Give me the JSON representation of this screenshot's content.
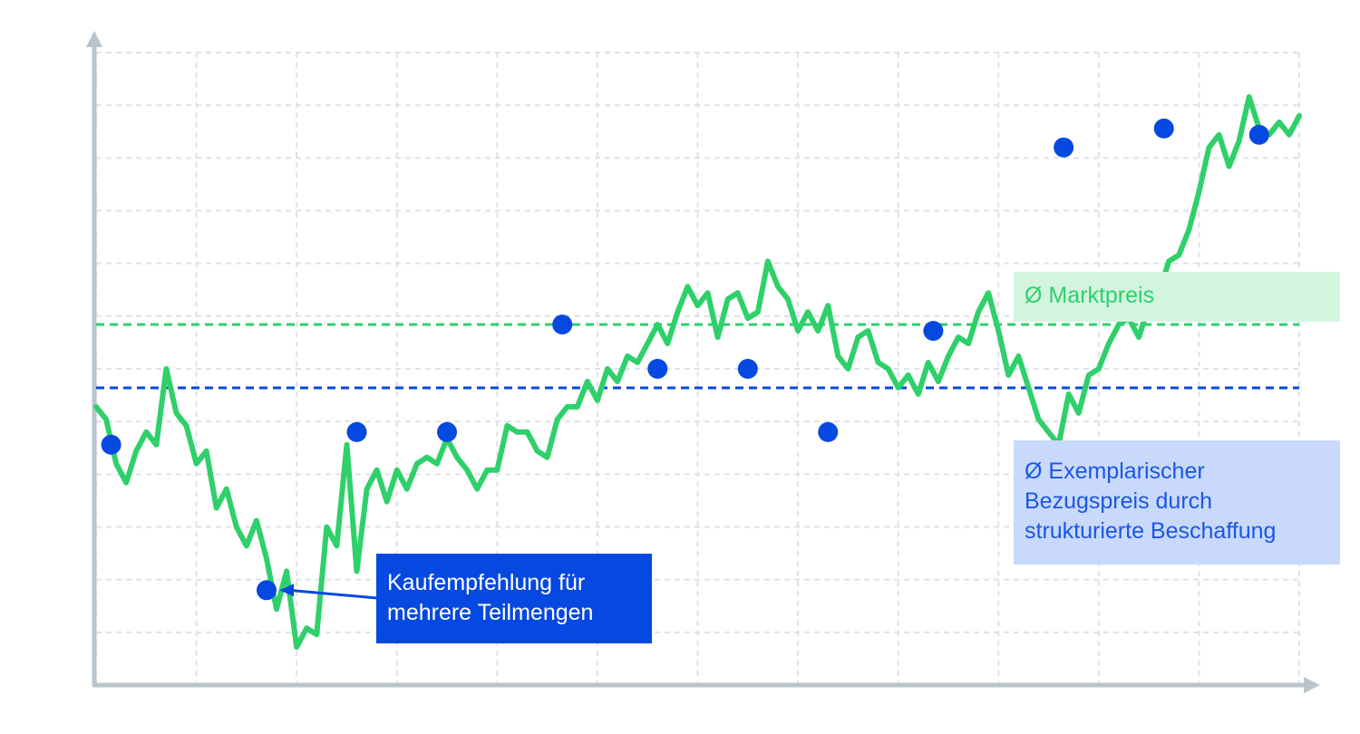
{
  "chart_data": {
    "type": "line",
    "title": "",
    "xlabel": "",
    "ylabel": "",
    "xlim": [
      0,
      240
    ],
    "ylim": [
      0,
      100
    ],
    "grid": true,
    "colors": {
      "market_line": "#2fd06a",
      "purchase_points": "#0649e0",
      "avg_market": "#2fd06a",
      "avg_supply": "#0649e0",
      "axis": "#b9c4cc",
      "grid": "#dde3e6"
    },
    "series": [
      {
        "values": [
          [
            0,
            44
          ],
          [
            2,
            42
          ],
          [
            4,
            35
          ],
          [
            6,
            32
          ],
          [
            8,
            37
          ],
          [
            10,
            40
          ],
          [
            12,
            38
          ],
          [
            14,
            50
          ],
          [
            16,
            43
          ],
          [
            18,
            41
          ],
          [
            20,
            35
          ],
          [
            22,
            37
          ],
          [
            24,
            28
          ],
          [
            26,
            31
          ],
          [
            28,
            25
          ],
          [
            30,
            22
          ],
          [
            32,
            26
          ],
          [
            34,
            20
          ],
          [
            36,
            12
          ],
          [
            38,
            18
          ],
          [
            40,
            6
          ],
          [
            42,
            9
          ],
          [
            44,
            8
          ],
          [
            46,
            25
          ],
          [
            48,
            22
          ],
          [
            50,
            38
          ],
          [
            52,
            18
          ],
          [
            54,
            31
          ],
          [
            56,
            34
          ],
          [
            58,
            29
          ],
          [
            60,
            34
          ],
          [
            62,
            31
          ],
          [
            64,
            35
          ],
          [
            66,
            36
          ],
          [
            68,
            35
          ],
          [
            70,
            39
          ],
          [
            72,
            36
          ],
          [
            74,
            34
          ],
          [
            76,
            31
          ],
          [
            78,
            34
          ],
          [
            80,
            34
          ],
          [
            82,
            41
          ],
          [
            84,
            40
          ],
          [
            86,
            40
          ],
          [
            88,
            37
          ],
          [
            90,
            36
          ],
          [
            92,
            42
          ],
          [
            94,
            44
          ],
          [
            96,
            44
          ],
          [
            98,
            48
          ],
          [
            100,
            45
          ],
          [
            102,
            50
          ],
          [
            104,
            48
          ],
          [
            106,
            52
          ],
          [
            108,
            51
          ],
          [
            110,
            54
          ],
          [
            112,
            57
          ],
          [
            114,
            54
          ],
          [
            116,
            59
          ],
          [
            118,
            63
          ],
          [
            120,
            60
          ],
          [
            122,
            62
          ],
          [
            124,
            55
          ],
          [
            126,
            61
          ],
          [
            128,
            62
          ],
          [
            130,
            58
          ],
          [
            132,
            59
          ],
          [
            134,
            67
          ],
          [
            136,
            63
          ],
          [
            138,
            61
          ],
          [
            140,
            56
          ],
          [
            142,
            59
          ],
          [
            144,
            56
          ],
          [
            146,
            60
          ],
          [
            148,
            52
          ],
          [
            150,
            50
          ],
          [
            152,
            55
          ],
          [
            154,
            56
          ],
          [
            156,
            51
          ],
          [
            158,
            50
          ],
          [
            160,
            47
          ],
          [
            162,
            49
          ],
          [
            164,
            46
          ],
          [
            166,
            51
          ],
          [
            168,
            48
          ],
          [
            170,
            52
          ],
          [
            172,
            55
          ],
          [
            174,
            54
          ],
          [
            176,
            59
          ],
          [
            178,
            62
          ],
          [
            180,
            56
          ],
          [
            182,
            49
          ],
          [
            184,
            52
          ],
          [
            186,
            47
          ],
          [
            188,
            42
          ],
          [
            190,
            40
          ],
          [
            192,
            38
          ],
          [
            194,
            46
          ],
          [
            196,
            43
          ],
          [
            198,
            49
          ],
          [
            200,
            50
          ],
          [
            202,
            54
          ],
          [
            204,
            57
          ],
          [
            206,
            58
          ],
          [
            208,
            55
          ],
          [
            210,
            60
          ],
          [
            212,
            62
          ],
          [
            214,
            67
          ],
          [
            216,
            68
          ],
          [
            218,
            72
          ],
          [
            220,
            78
          ],
          [
            222,
            85
          ],
          [
            224,
            87
          ],
          [
            226,
            82
          ],
          [
            228,
            86
          ],
          [
            230,
            93
          ],
          [
            232,
            88
          ],
          [
            234,
            87
          ],
          [
            236,
            89
          ],
          [
            238,
            87
          ],
          [
            240,
            90
          ]
        ]
      },
      {
        "type": "scatter",
        "values": [
          [
            3,
            38
          ],
          [
            34,
            15
          ],
          [
            52,
            40
          ],
          [
            70,
            40
          ],
          [
            93,
            57
          ],
          [
            112,
            50
          ],
          [
            130,
            50
          ],
          [
            146,
            40
          ],
          [
            167,
            56
          ],
          [
            193,
            85
          ],
          [
            213,
            88
          ],
          [
            232,
            87
          ]
        ]
      }
    ],
    "reference_lines": [
      {
        "y": 57,
        "style": "dashed",
        "color": "#2fd06a"
      },
      {
        "y": 47,
        "style": "dashed",
        "color": "#0649e0"
      }
    ]
  },
  "annotations": {
    "market_price": "Ø Marktpreis",
    "supply_price_lines": [
      "Ø Exemplarischer",
      "Bezugspreis durch",
      "strukturierte Beschaffung"
    ],
    "recommendation_lines": [
      "Kaufempfehlung für",
      "mehrere Teilmengen"
    ]
  }
}
